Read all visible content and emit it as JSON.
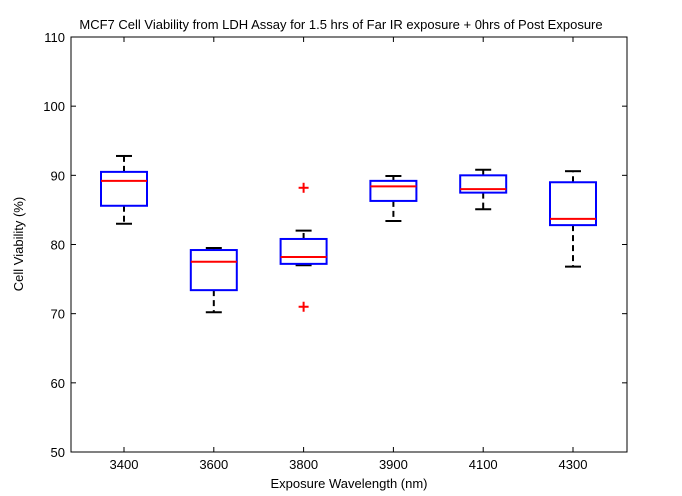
{
  "chart_data": {
    "type": "box",
    "title": "MCF7 Cell Viability from LDH Assay for 1.5 hrs of Far IR exposure + 0hrs of Post Exposure",
    "xlabel": "Exposure Wavelength (nm)",
    "ylabel": "Cell Viability (%)",
    "ylim": [
      50,
      110
    ],
    "yticks": [
      50,
      60,
      70,
      80,
      90,
      100,
      110
    ],
    "categories": [
      "3400",
      "3600",
      "3800",
      "3900",
      "4100",
      "4300"
    ],
    "boxes": [
      {
        "category": "3400",
        "whisker_low": 83,
        "q1": 85.6,
        "median": 89.2,
        "q3": 90.5,
        "whisker_high": 92.8,
        "outliers": []
      },
      {
        "category": "3600",
        "whisker_low": 70.2,
        "q1": 73.4,
        "median": 77.5,
        "q3": 79.2,
        "whisker_high": 79.5,
        "outliers": []
      },
      {
        "category": "3800",
        "whisker_low": 77,
        "q1": 77.2,
        "median": 78.2,
        "q3": 80.8,
        "whisker_high": 82,
        "outliers": [
          88.2,
          71
        ]
      },
      {
        "category": "3900",
        "whisker_low": 83.4,
        "q1": 86.3,
        "median": 88.4,
        "q3": 89.2,
        "whisker_high": 89.9,
        "outliers": []
      },
      {
        "category": "4100",
        "whisker_low": 85.1,
        "q1": 87.5,
        "median": 88,
        "q3": 90,
        "whisker_high": 90.8,
        "outliers": []
      },
      {
        "category": "4300",
        "whisker_low": 76.8,
        "q1": 82.8,
        "median": 83.7,
        "q3": 89,
        "whisker_high": 90.6,
        "outliers": []
      }
    ],
    "colors": {
      "box": "#0000ff",
      "median": "#ff0000",
      "whisker": "#000000",
      "outlier": "#ff0000"
    },
    "grid": false
  }
}
